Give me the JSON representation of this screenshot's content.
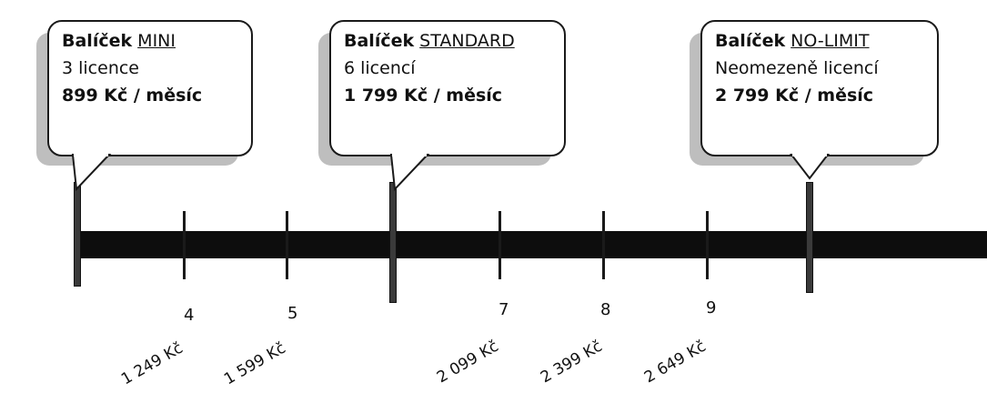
{
  "packages": [
    {
      "prefix": "Balíček",
      "name": "MINI",
      "licenses": "3 licence",
      "price": "899 Kč / měsíc"
    },
    {
      "prefix": "Balíček",
      "name": "STANDARD",
      "licenses": "6 licencí",
      "price": "1 799 Kč / měsíc"
    },
    {
      "prefix": "Balíček",
      "name": "NO-LIMIT",
      "licenses": "Neomezeně licencí",
      "price": "2 799 Kč / měsíc"
    }
  ],
  "ticks": [
    {
      "count": "4",
      "price": "1 249 Kč"
    },
    {
      "count": "5",
      "price": "1 599 Kč"
    },
    {
      "count": "7",
      "price": "2 099 Kč"
    },
    {
      "count": "8",
      "price": "2 399 Kč"
    },
    {
      "count": "9",
      "price": "2 649 Kč"
    }
  ]
}
